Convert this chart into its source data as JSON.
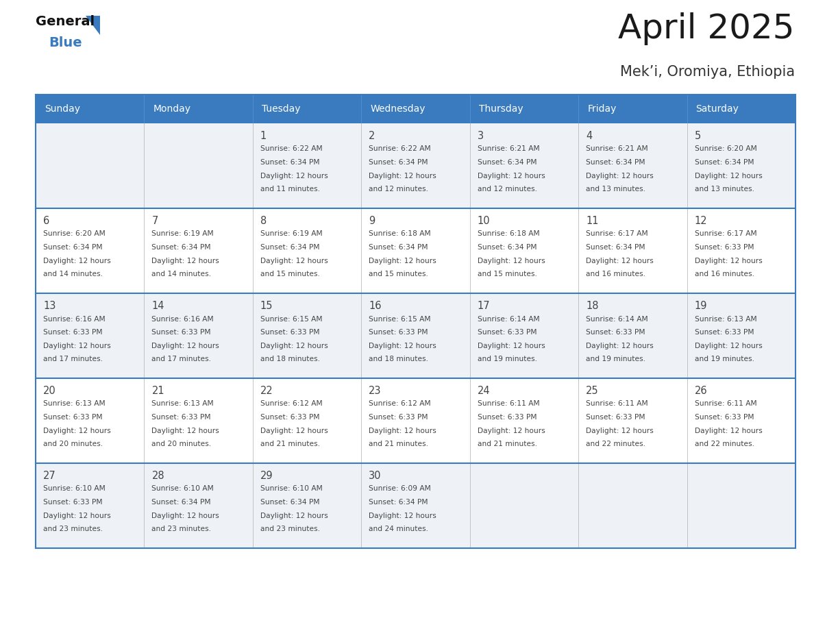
{
  "title": "April 2025",
  "subtitle": "Mek’i, Oromiya, Ethiopia",
  "days_of_week": [
    "Sunday",
    "Monday",
    "Tuesday",
    "Wednesday",
    "Thursday",
    "Friday",
    "Saturday"
  ],
  "header_bg": "#3a7bbf",
  "header_text": "#ffffff",
  "row_bg_light": "#eef2f7",
  "row_bg_white": "#ffffff",
  "cell_border_color": "#3a7bbf",
  "text_color": "#444444",
  "title_color": "#1a1a1a",
  "subtitle_color": "#333333",
  "calendar_data": [
    [
      null,
      null,
      {
        "day": 1,
        "sunrise": "6:22 AM",
        "sunset": "6:34 PM",
        "dl_suffix": "11 minutes."
      },
      {
        "day": 2,
        "sunrise": "6:22 AM",
        "sunset": "6:34 PM",
        "dl_suffix": "12 minutes."
      },
      {
        "day": 3,
        "sunrise": "6:21 AM",
        "sunset": "6:34 PM",
        "dl_suffix": "12 minutes."
      },
      {
        "day": 4,
        "sunrise": "6:21 AM",
        "sunset": "6:34 PM",
        "dl_suffix": "13 minutes."
      },
      {
        "day": 5,
        "sunrise": "6:20 AM",
        "sunset": "6:34 PM",
        "dl_suffix": "13 minutes."
      }
    ],
    [
      {
        "day": 6,
        "sunrise": "6:20 AM",
        "sunset": "6:34 PM",
        "dl_suffix": "14 minutes."
      },
      {
        "day": 7,
        "sunrise": "6:19 AM",
        "sunset": "6:34 PM",
        "dl_suffix": "14 minutes."
      },
      {
        "day": 8,
        "sunrise": "6:19 AM",
        "sunset": "6:34 PM",
        "dl_suffix": "15 minutes."
      },
      {
        "day": 9,
        "sunrise": "6:18 AM",
        "sunset": "6:34 PM",
        "dl_suffix": "15 minutes."
      },
      {
        "day": 10,
        "sunrise": "6:18 AM",
        "sunset": "6:34 PM",
        "dl_suffix": "15 minutes."
      },
      {
        "day": 11,
        "sunrise": "6:17 AM",
        "sunset": "6:34 PM",
        "dl_suffix": "16 minutes."
      },
      {
        "day": 12,
        "sunrise": "6:17 AM",
        "sunset": "6:33 PM",
        "dl_suffix": "16 minutes."
      }
    ],
    [
      {
        "day": 13,
        "sunrise": "6:16 AM",
        "sunset": "6:33 PM",
        "dl_suffix": "17 minutes."
      },
      {
        "day": 14,
        "sunrise": "6:16 AM",
        "sunset": "6:33 PM",
        "dl_suffix": "17 minutes."
      },
      {
        "day": 15,
        "sunrise": "6:15 AM",
        "sunset": "6:33 PM",
        "dl_suffix": "18 minutes."
      },
      {
        "day": 16,
        "sunrise": "6:15 AM",
        "sunset": "6:33 PM",
        "dl_suffix": "18 minutes."
      },
      {
        "day": 17,
        "sunrise": "6:14 AM",
        "sunset": "6:33 PM",
        "dl_suffix": "19 minutes."
      },
      {
        "day": 18,
        "sunrise": "6:14 AM",
        "sunset": "6:33 PM",
        "dl_suffix": "19 minutes."
      },
      {
        "day": 19,
        "sunrise": "6:13 AM",
        "sunset": "6:33 PM",
        "dl_suffix": "19 minutes."
      }
    ],
    [
      {
        "day": 20,
        "sunrise": "6:13 AM",
        "sunset": "6:33 PM",
        "dl_suffix": "20 minutes."
      },
      {
        "day": 21,
        "sunrise": "6:13 AM",
        "sunset": "6:33 PM",
        "dl_suffix": "20 minutes."
      },
      {
        "day": 22,
        "sunrise": "6:12 AM",
        "sunset": "6:33 PM",
        "dl_suffix": "21 minutes."
      },
      {
        "day": 23,
        "sunrise": "6:12 AM",
        "sunset": "6:33 PM",
        "dl_suffix": "21 minutes."
      },
      {
        "day": 24,
        "sunrise": "6:11 AM",
        "sunset": "6:33 PM",
        "dl_suffix": "21 minutes."
      },
      {
        "day": 25,
        "sunrise": "6:11 AM",
        "sunset": "6:33 PM",
        "dl_suffix": "22 minutes."
      },
      {
        "day": 26,
        "sunrise": "6:11 AM",
        "sunset": "6:33 PM",
        "dl_suffix": "22 minutes."
      }
    ],
    [
      {
        "day": 27,
        "sunrise": "6:10 AM",
        "sunset": "6:33 PM",
        "dl_suffix": "23 minutes."
      },
      {
        "day": 28,
        "sunrise": "6:10 AM",
        "sunset": "6:34 PM",
        "dl_suffix": "23 minutes."
      },
      {
        "day": 29,
        "sunrise": "6:10 AM",
        "sunset": "6:34 PM",
        "dl_suffix": "23 minutes."
      },
      {
        "day": 30,
        "sunrise": "6:09 AM",
        "sunset": "6:34 PM",
        "dl_suffix": "24 minutes."
      },
      null,
      null,
      null
    ]
  ],
  "logo_text_general": "General",
  "logo_text_blue": "Blue",
  "logo_color_general": "#111111",
  "logo_color_blue": "#3a7bbf",
  "logo_triangle_color": "#3a7bbf",
  "fig_width": 11.88,
  "fig_height": 9.18,
  "dpi": 100
}
